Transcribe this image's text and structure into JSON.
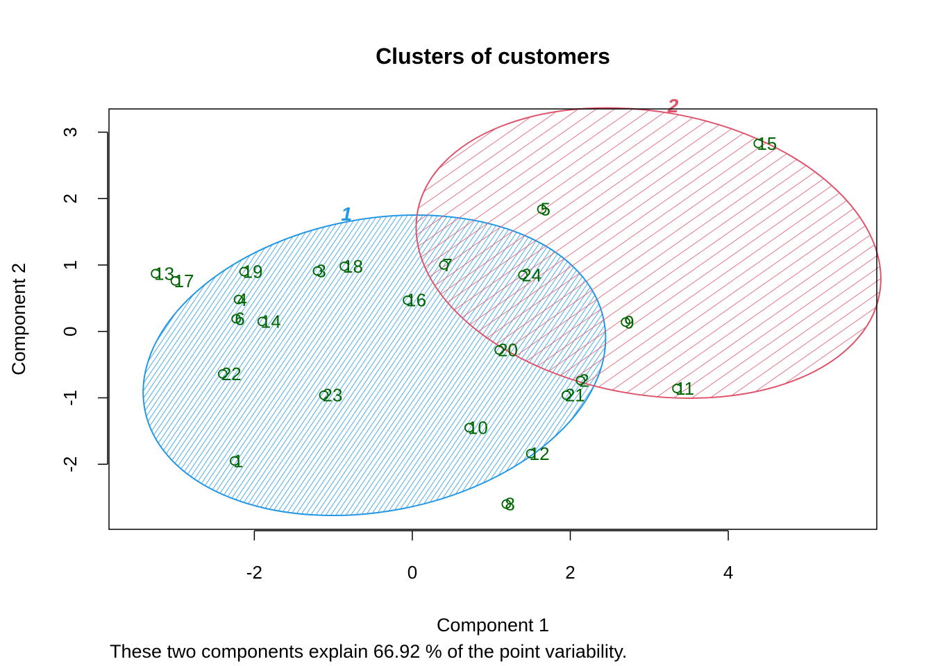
{
  "chart_data": {
    "type": "scatter",
    "title": "Clusters of customers",
    "xlabel": "Component 1",
    "ylabel": "Component 2",
    "subtitle": "These two components explain 66.92 % of the point variability.",
    "xlim": [
      -3.84,
      5.88
    ],
    "ylim": [
      -2.98,
      3.35
    ],
    "xticks": [
      -2,
      0,
      2,
      4
    ],
    "yticks": [
      -2,
      -1,
      0,
      1,
      2,
      3
    ],
    "grid": false,
    "point_color": "#006400",
    "clusters": [
      {
        "label": "1",
        "color": "#2297E6",
        "center": [
          -0.48,
          -0.51
        ],
        "rx": 2.96,
        "ry": 2.2,
        "angle_deg": -11,
        "hatch_angle": 45,
        "hatch_density": "dense"
      },
      {
        "label": "2",
        "color": "#DF536B",
        "center": [
          2.99,
          1.18
        ],
        "rx": 2.97,
        "ry": 2.13,
        "angle_deg": 10,
        "hatch_angle": 45,
        "hatch_density": "sparse"
      }
    ],
    "points": [
      {
        "label": "1",
        "x": -2.25,
        "y": -1.95,
        "cluster": 1
      },
      {
        "label": "2",
        "x": 2.13,
        "y": -0.74,
        "cluster": 1
      },
      {
        "label": "3",
        "x": -1.2,
        "y": 0.91,
        "cluster": 1
      },
      {
        "label": "4",
        "x": -2.2,
        "y": 0.48,
        "cluster": 1
      },
      {
        "label": "5",
        "x": 1.64,
        "y": 1.84,
        "cluster": 2
      },
      {
        "label": "6",
        "x": -2.23,
        "y": 0.19,
        "cluster": 1
      },
      {
        "label": "7",
        "x": 0.4,
        "y": 1.0,
        "cluster": 1
      },
      {
        "label": "8",
        "x": 1.19,
        "y": -2.6,
        "cluster": 1
      },
      {
        "label": "9",
        "x": 2.7,
        "y": 0.14,
        "cluster": 2
      },
      {
        "label": "10",
        "x": 0.72,
        "y": -1.45,
        "cluster": 1
      },
      {
        "label": "11",
        "x": 3.35,
        "y": -0.86,
        "cluster": 2
      },
      {
        "label": "12",
        "x": 1.5,
        "y": -1.84,
        "cluster": 1
      },
      {
        "label": "13",
        "x": -3.25,
        "y": 0.87,
        "cluster": 1
      },
      {
        "label": "14",
        "x": -1.9,
        "y": 0.15,
        "cluster": 1
      },
      {
        "label": "15",
        "x": 4.38,
        "y": 2.83,
        "cluster": 2
      },
      {
        "label": "16",
        "x": -0.06,
        "y": 0.47,
        "cluster": 1
      },
      {
        "label": "17",
        "x": -3.0,
        "y": 0.76,
        "cluster": 1
      },
      {
        "label": "18",
        "x": -0.86,
        "y": 0.98,
        "cluster": 1
      },
      {
        "label": "19",
        "x": -2.13,
        "y": 0.9,
        "cluster": 1
      },
      {
        "label": "20",
        "x": 1.1,
        "y": -0.28,
        "cluster": 1
      },
      {
        "label": "21",
        "x": 1.95,
        "y": -0.96,
        "cluster": 1
      },
      {
        "label": "22",
        "x": -2.4,
        "y": -0.64,
        "cluster": 1
      },
      {
        "label": "23",
        "x": -1.12,
        "y": -0.96,
        "cluster": 1
      },
      {
        "label": "24",
        "x": 1.4,
        "y": 0.85,
        "cluster": 2
      }
    ]
  }
}
